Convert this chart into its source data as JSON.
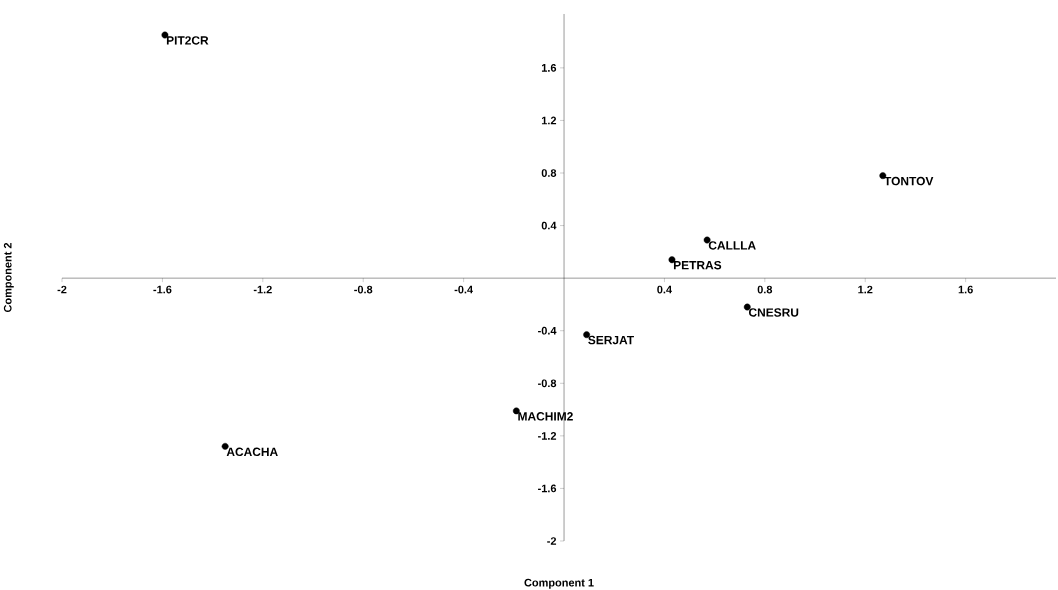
{
  "chart_data": {
    "type": "scatter",
    "xlabel": "Component 1",
    "ylabel": "Component 2",
    "xlim": [
      -2,
      1.96
    ],
    "ylim": [
      -2,
      2.01
    ],
    "xticks": [
      -2,
      -1.6,
      -1.2,
      -0.8,
      -0.4,
      0.4,
      0.8,
      1.2,
      1.6
    ],
    "yticks": [
      -2,
      -1.6,
      -1.2,
      -0.8,
      -0.4,
      0.4,
      0.8,
      1.2,
      1.6
    ],
    "grid": false,
    "marker": "circle",
    "series": [
      {
        "color": "#000000",
        "x": [
          -1.59,
          1.27,
          0.57,
          0.43,
          0.73,
          0.09,
          -0.19,
          -1.35
        ],
        "values": [
          1.85,
          0.78,
          0.29,
          0.14,
          -0.22,
          -0.43,
          -1.01,
          -1.28
        ]
      }
    ],
    "annotations": [
      {
        "text": "PIT2CR",
        "x": -1.59,
        "y": 1.85
      },
      {
        "text": "TONTOV",
        "x": 1.27,
        "y": 0.78
      },
      {
        "text": "CALLLA",
        "x": 0.57,
        "y": 0.29
      },
      {
        "text": "PETRAS",
        "x": 0.43,
        "y": 0.14
      },
      {
        "text": "CNESRU",
        "x": 0.73,
        "y": -0.22
      },
      {
        "text": "SERJAT",
        "x": 0.09,
        "y": -0.43
      },
      {
        "text": "MACHIM2",
        "x": -0.19,
        "y": -1.01
      },
      {
        "text": "ACACHA",
        "x": -1.35,
        "y": -1.28
      }
    ]
  }
}
